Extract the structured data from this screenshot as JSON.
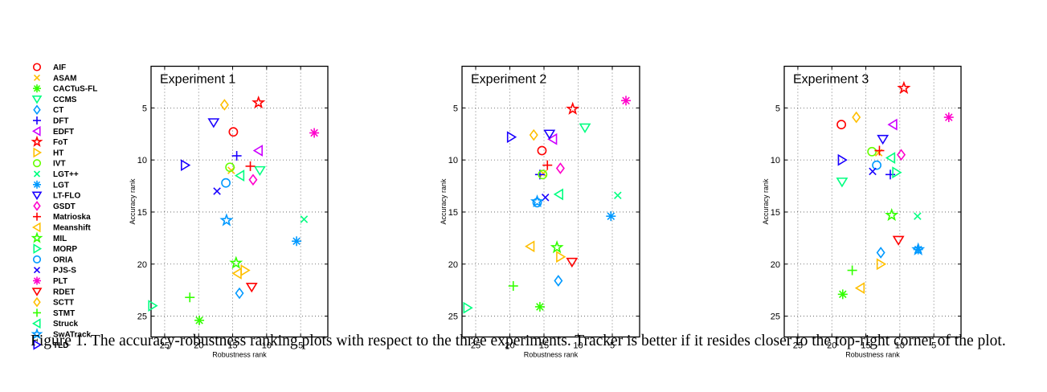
{
  "caption": "Figure 1. The accuracy-robustness ranking plots with respect to the three experiments. Tracker is better if it resides closer to the top-right corner of the plot.",
  "trackers": [
    {
      "name": "AIF",
      "marker": "circle",
      "color": "#ff0000"
    },
    {
      "name": "ASAM",
      "marker": "x",
      "color": "#ffbf00"
    },
    {
      "name": "CACTuS-FL",
      "marker": "star6",
      "color": "#33ff00"
    },
    {
      "name": "CCMS",
      "marker": "tri-down",
      "color": "#00ff80"
    },
    {
      "name": "CT",
      "marker": "diamond",
      "color": "#0099ff"
    },
    {
      "name": "DFT",
      "marker": "plus",
      "color": "#1a00ff"
    },
    {
      "name": "EDFT",
      "marker": "tri-left",
      "color": "#cc00ff"
    },
    {
      "name": "FoT",
      "marker": "star5",
      "color": "#ff0000"
    },
    {
      "name": "HT",
      "marker": "tri-right",
      "color": "#ffbf00"
    },
    {
      "name": "IVT",
      "marker": "circle",
      "color": "#66ff00"
    },
    {
      "name": "LGT++",
      "marker": "x",
      "color": "#00ff80"
    },
    {
      "name": "LGT",
      "marker": "star6",
      "color": "#0099ff"
    },
    {
      "name": "LT-FLO",
      "marker": "tri-down",
      "color": "#1a00ff"
    },
    {
      "name": "GSDT",
      "marker": "diamond",
      "color": "#ff00cc"
    },
    {
      "name": "Matrioska",
      "marker": "plus",
      "color": "#ff0000"
    },
    {
      "name": "Meanshift",
      "marker": "tri-left",
      "color": "#ffbf00"
    },
    {
      "name": "MIL",
      "marker": "star5",
      "color": "#33ff00"
    },
    {
      "name": "MORP",
      "marker": "tri-right",
      "color": "#00ff80"
    },
    {
      "name": "ORIA",
      "marker": "circle",
      "color": "#0099ff"
    },
    {
      "name": "PJS-S",
      "marker": "x",
      "color": "#1a00ff"
    },
    {
      "name": "PLT",
      "marker": "star6",
      "color": "#ff00cc"
    },
    {
      "name": "RDET",
      "marker": "tri-down",
      "color": "#ff0000"
    },
    {
      "name": "SCTT",
      "marker": "diamond",
      "color": "#ffbf00"
    },
    {
      "name": "STMT",
      "marker": "plus",
      "color": "#33ff00"
    },
    {
      "name": "Struck",
      "marker": "tri-left",
      "color": "#00ff80"
    },
    {
      "name": "SwATrack",
      "marker": "star5",
      "color": "#0099ff"
    },
    {
      "name": "TLD",
      "marker": "tri-right",
      "color": "#1a00ff"
    }
  ],
  "chart_data": [
    {
      "type": "scatter",
      "title": "Experiment 1",
      "xlabel": "Robustness rank",
      "ylabel": "Accuracy rank",
      "xlim": [
        27,
        1
      ],
      "ylim": [
        27,
        1
      ],
      "x_reversed": true,
      "y_reversed": true,
      "xticks": [
        25,
        20,
        15,
        10,
        5
      ],
      "yticks": [
        5,
        10,
        15,
        20,
        25
      ],
      "grid": true,
      "points": [
        {
          "tracker": "AIF",
          "x": 14.9,
          "y": 7.3
        },
        {
          "tracker": "ASAM",
          "x": 15.2,
          "y": 11.0
        },
        {
          "tracker": "CACTuS-FL",
          "x": 19.9,
          "y": 25.4
        },
        {
          "tracker": "CCMS",
          "x": 11.0,
          "y": 11.0
        },
        {
          "tracker": "CT",
          "x": 14.0,
          "y": 22.8
        },
        {
          "tracker": "DFT",
          "x": 14.4,
          "y": 9.6
        },
        {
          "tracker": "EDFT",
          "x": 11.2,
          "y": 9.1
        },
        {
          "tracker": "FoT",
          "x": 11.2,
          "y": 4.5
        },
        {
          "tracker": "HT",
          "x": 13.2,
          "y": 20.6
        },
        {
          "tracker": "IVT",
          "x": 15.4,
          "y": 10.7
        },
        {
          "tracker": "LGT++",
          "x": 4.5,
          "y": 15.7
        },
        {
          "tracker": "LGT",
          "x": 5.6,
          "y": 17.8
        },
        {
          "tracker": "LT-FLO",
          "x": 17.8,
          "y": 6.4
        },
        {
          "tracker": "GSDT",
          "x": 12.0,
          "y": 11.9
        },
        {
          "tracker": "Matrioska",
          "x": 12.4,
          "y": 10.6
        },
        {
          "tracker": "Meanshift",
          "x": 14.3,
          "y": 20.9
        },
        {
          "tracker": "MIL",
          "x": 14.5,
          "y": 19.9
        },
        {
          "tracker": "MORP",
          "x": 26.8,
          "y": 24.0
        },
        {
          "tracker": "ORIA",
          "x": 16.0,
          "y": 12.2
        },
        {
          "tracker": "PJS-S",
          "x": 17.3,
          "y": 13.0
        },
        {
          "tracker": "PLT",
          "x": 3.0,
          "y": 7.4
        },
        {
          "tracker": "RDET",
          "x": 12.2,
          "y": 22.2
        },
        {
          "tracker": "SCTT",
          "x": 16.2,
          "y": 4.7
        },
        {
          "tracker": "STMT",
          "x": 21.3,
          "y": 23.2
        },
        {
          "tracker": "Struck",
          "x": 13.9,
          "y": 11.5
        },
        {
          "tracker": "SwATrack",
          "x": 15.9,
          "y": 15.8
        },
        {
          "tracker": "TLD",
          "x": 22.0,
          "y": 10.5
        }
      ]
    },
    {
      "type": "scatter",
      "title": "Experiment 2",
      "xlabel": "Robustness rank",
      "ylabel": "Accuracy rank",
      "xlim": [
        27,
        1
      ],
      "ylim": [
        27,
        1
      ],
      "x_reversed": true,
      "y_reversed": true,
      "xticks": [
        25,
        20,
        15,
        10,
        5
      ],
      "yticks": [
        5,
        10,
        15,
        20,
        25
      ],
      "grid": true,
      "points": [
        {
          "tracker": "AIF",
          "x": 15.3,
          "y": 9.1
        },
        {
          "tracker": "ASAM",
          "x": 15.1,
          "y": 11.3
        },
        {
          "tracker": "CACTuS-FL",
          "x": 15.6,
          "y": 24.1
        },
        {
          "tracker": "CCMS",
          "x": 9.0,
          "y": 6.9
        },
        {
          "tracker": "CT",
          "x": 12.9,
          "y": 21.6
        },
        {
          "tracker": "DFT",
          "x": 15.6,
          "y": 11.4
        },
        {
          "tracker": "EDFT",
          "x": 13.7,
          "y": 8.0
        },
        {
          "tracker": "FoT",
          "x": 10.8,
          "y": 5.1
        },
        {
          "tracker": "HT",
          "x": 12.6,
          "y": 19.3
        },
        {
          "tracker": "IVT",
          "x": 15.2,
          "y": 11.4
        },
        {
          "tracker": "LGT++",
          "x": 4.2,
          "y": 13.4
        },
        {
          "tracker": "LGT",
          "x": 5.2,
          "y": 15.4
        },
        {
          "tracker": "LT-FLO",
          "x": 14.2,
          "y": 7.5
        },
        {
          "tracker": "GSDT",
          "x": 12.6,
          "y": 10.8
        },
        {
          "tracker": "Matrioska",
          "x": 14.5,
          "y": 10.5
        },
        {
          "tracker": "Meanshift",
          "x": 17.0,
          "y": 18.3
        },
        {
          "tracker": "MIL",
          "x": 13.1,
          "y": 18.4
        },
        {
          "tracker": "MORP",
          "x": 26.2,
          "y": 24.2
        },
        {
          "tracker": "ORIA",
          "x": 16.0,
          "y": 14.1
        },
        {
          "tracker": "PJS-S",
          "x": 14.8,
          "y": 13.6
        },
        {
          "tracker": "PLT",
          "x": 3.0,
          "y": 4.3
        },
        {
          "tracker": "RDET",
          "x": 10.9,
          "y": 19.8
        },
        {
          "tracker": "SCTT",
          "x": 16.5,
          "y": 7.6
        },
        {
          "tracker": "STMT",
          "x": 19.5,
          "y": 22.1
        },
        {
          "tracker": "Struck",
          "x": 12.8,
          "y": 13.3
        },
        {
          "tracker": "SwATrack",
          "x": 16.0,
          "y": 14.0
        },
        {
          "tracker": "TLD",
          "x": 19.8,
          "y": 7.8
        }
      ]
    },
    {
      "type": "scatter",
      "title": "Experiment 3",
      "xlabel": "Robustness rank",
      "ylabel": "Accuracy rank",
      "xlim": [
        27,
        1
      ],
      "ylim": [
        27,
        1
      ],
      "x_reversed": true,
      "y_reversed": true,
      "xticks": [
        25,
        20,
        15,
        10,
        5
      ],
      "yticks": [
        5,
        10,
        15,
        20,
        25
      ],
      "grid": true,
      "points": [
        {
          "tracker": "AIF",
          "x": 18.6,
          "y": 6.6
        },
        {
          "tracker": "ASAM",
          "x": 13.1,
          "y": 9.3
        },
        {
          "tracker": "CACTuS-FL",
          "x": 18.4,
          "y": 22.9
        },
        {
          "tracker": "CCMS",
          "x": 18.5,
          "y": 12.1
        },
        {
          "tracker": "CT",
          "x": 12.8,
          "y": 18.9
        },
        {
          "tracker": "DFT",
          "x": 11.4,
          "y": 11.4
        },
        {
          "tracker": "EDFT",
          "x": 11.0,
          "y": 6.6
        },
        {
          "tracker": "FoT",
          "x": 9.4,
          "y": 3.1
        },
        {
          "tracker": "HT",
          "x": 12.8,
          "y": 20.0
        },
        {
          "tracker": "IVT",
          "x": 14.1,
          "y": 9.2
        },
        {
          "tracker": "LGT++",
          "x": 7.4,
          "y": 15.4
        },
        {
          "tracker": "LGT",
          "x": 7.3,
          "y": 18.6
        },
        {
          "tracker": "LT-FLO",
          "x": 12.5,
          "y": 8.0
        },
        {
          "tracker": "GSDT",
          "x": 9.8,
          "y": 9.5
        },
        {
          "tracker": "Matrioska",
          "x": 13.0,
          "y": 9.1
        },
        {
          "tracker": "Meanshift",
          "x": 15.8,
          "y": 22.3
        },
        {
          "tracker": "MIL",
          "x": 11.2,
          "y": 15.3
        },
        {
          "tracker": "MORP",
          "x": 10.5,
          "y": 11.2
        },
        {
          "tracker": "ORIA",
          "x": 13.4,
          "y": 10.5
        },
        {
          "tracker": "PJS-S",
          "x": 14.0,
          "y": 11.1
        },
        {
          "tracker": "PLT",
          "x": 2.8,
          "y": 5.9
        },
        {
          "tracker": "RDET",
          "x": 10.2,
          "y": 17.7
        },
        {
          "tracker": "SCTT",
          "x": 16.4,
          "y": 5.9
        },
        {
          "tracker": "STMT",
          "x": 17.0,
          "y": 20.6
        },
        {
          "tracker": "Struck",
          "x": 11.3,
          "y": 9.8
        },
        {
          "tracker": "SwATrack",
          "x": 7.3,
          "y": 18.6
        },
        {
          "tracker": "TLD",
          "x": 18.5,
          "y": 10.0
        }
      ]
    }
  ]
}
